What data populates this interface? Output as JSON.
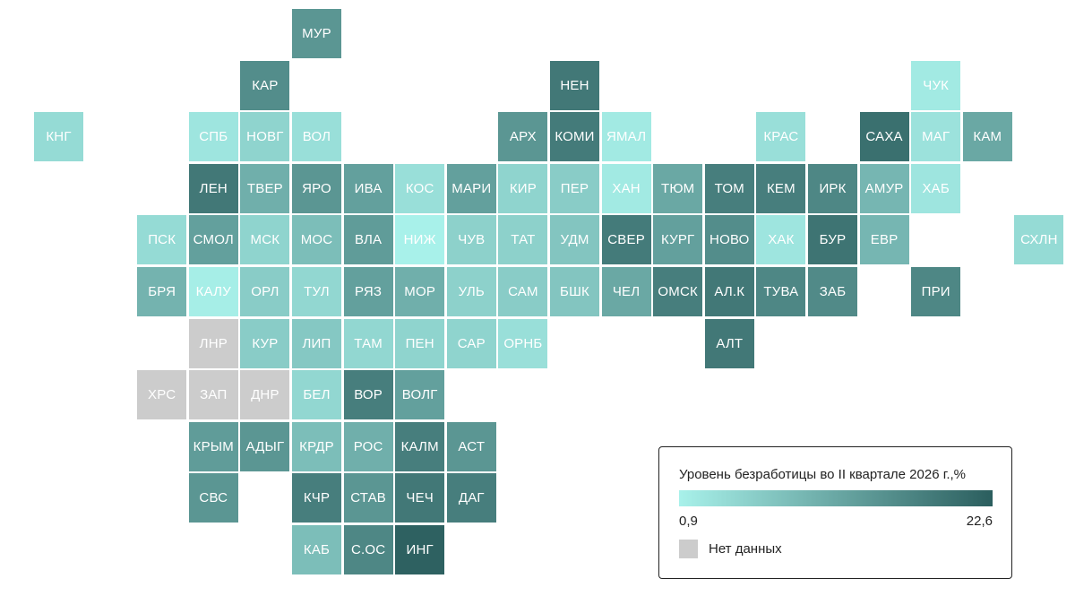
{
  "colors": {
    "low": "#a8f1ea",
    "high": "#2b5e5e",
    "no_data": "#cccccc"
  },
  "legend": {
    "title": "Уровень безработицы во II квартале 2026 г.,%",
    "min_label": "0,9",
    "max_label": "22,6",
    "no_data_label": "Нет данных"
  },
  "regions": [
    {
      "label": "МУР",
      "value": 0.62
    },
    {
      "label": "КАР",
      "value": 0.68
    },
    {
      "label": "НЕН",
      "value": 0.82
    },
    {
      "label": "ЧУК",
      "value": 0.05
    },
    {
      "label": "КНГ",
      "value": 0.15
    },
    {
      "label": "СПБ",
      "value": 0.08
    },
    {
      "label": "НОВГ",
      "value": 0.2
    },
    {
      "label": "ВОЛ",
      "value": 0.12
    },
    {
      "label": "АРХ",
      "value": 0.62
    },
    {
      "label": "КОМИ",
      "value": 0.8
    },
    {
      "label": "ЯМАЛ",
      "value": 0.05
    },
    {
      "label": "КРАС",
      "value": 0.12
    },
    {
      "label": "САХА",
      "value": 0.88
    },
    {
      "label": "МАГ",
      "value": 0.1
    },
    {
      "label": "КАМ",
      "value": 0.5
    },
    {
      "label": "ЛЕН",
      "value": 0.82
    },
    {
      "label": "ТВЕР",
      "value": 0.45
    },
    {
      "label": "ЯРО",
      "value": 0.62
    },
    {
      "label": "ИВА",
      "value": 0.55
    },
    {
      "label": "КОС",
      "value": 0.12
    },
    {
      "label": "МАРИ",
      "value": 0.55
    },
    {
      "label": "КИР",
      "value": 0.2
    },
    {
      "label": "ПЕР",
      "value": 0.25
    },
    {
      "label": "ХАН",
      "value": 0.05
    },
    {
      "label": "ТЮМ",
      "value": 0.5
    },
    {
      "label": "ТОМ",
      "value": 0.78
    },
    {
      "label": "КЕМ",
      "value": 0.78
    },
    {
      "label": "ИРК",
      "value": 0.72
    },
    {
      "label": "АМУР",
      "value": 0.4
    },
    {
      "label": "ХАБ",
      "value": 0.08
    },
    {
      "label": "ПСК",
      "value": 0.15
    },
    {
      "label": "СМОЛ",
      "value": 0.55
    },
    {
      "label": "МСК",
      "value": 0.2
    },
    {
      "label": "МОС",
      "value": 0.35
    },
    {
      "label": "ВЛА",
      "value": 0.58
    },
    {
      "label": "НИЖ",
      "value": 0.0
    },
    {
      "label": "ЧУВ",
      "value": 0.22
    },
    {
      "label": "ТАТ",
      "value": 0.22
    },
    {
      "label": "УДМ",
      "value": 0.3
    },
    {
      "label": "СВЕР",
      "value": 0.8
    },
    {
      "label": "КУРГ",
      "value": 0.55
    },
    {
      "label": "НОВО",
      "value": 0.68
    },
    {
      "label": "ХАК",
      "value": 0.08
    },
    {
      "label": "БУР",
      "value": 0.85
    },
    {
      "label": "ЕВР",
      "value": 0.4
    },
    {
      "label": "СХЛН",
      "value": 0.15
    },
    {
      "label": "БРЯ",
      "value": 0.42
    },
    {
      "label": "КАЛУ",
      "value": 0.02
    },
    {
      "label": "ОРЛ",
      "value": 0.25
    },
    {
      "label": "ТУЛ",
      "value": 0.18
    },
    {
      "label": "РЯЗ",
      "value": 0.55
    },
    {
      "label": "МОР",
      "value": 0.45
    },
    {
      "label": "УЛЬ",
      "value": 0.22
    },
    {
      "label": "САМ",
      "value": 0.25
    },
    {
      "label": "БШК",
      "value": 0.3
    },
    {
      "label": "ЧЕЛ",
      "value": 0.5
    },
    {
      "label": "ОМСК",
      "value": 0.78
    },
    {
      "label": "АЛ.К",
      "value": 0.82
    },
    {
      "label": "ТУВА",
      "value": 0.72
    },
    {
      "label": "ЗАБ",
      "value": 0.7
    },
    {
      "label": "ПРИ",
      "value": 0.72
    },
    {
      "label": "ЛНР",
      "value": null
    },
    {
      "label": "КУР",
      "value": 0.25
    },
    {
      "label": "ЛИП",
      "value": 0.28
    },
    {
      "label": "ТАМ",
      "value": 0.18
    },
    {
      "label": "ПЕН",
      "value": 0.2
    },
    {
      "label": "САР",
      "value": 0.2
    },
    {
      "label": "ОРНБ",
      "value": 0.12
    },
    {
      "label": "АЛТ",
      "value": 0.82
    },
    {
      "label": "ХРС",
      "value": null
    },
    {
      "label": "ЗАП",
      "value": null
    },
    {
      "label": "ДНР",
      "value": null
    },
    {
      "label": "БЕЛ",
      "value": 0.18
    },
    {
      "label": "ВОР",
      "value": 0.78
    },
    {
      "label": "ВОЛГ",
      "value": 0.55
    },
    {
      "label": "КРЫМ",
      "value": 0.58
    },
    {
      "label": "АДЫГ",
      "value": 0.62
    },
    {
      "label": "КРДР",
      "value": 0.35
    },
    {
      "label": "РОС",
      "value": 0.45
    },
    {
      "label": "КАЛМ",
      "value": 0.78
    },
    {
      "label": "АСТ",
      "value": 0.62
    },
    {
      "label": "СВС",
      "value": 0.62
    },
    {
      "label": "КЧР",
      "value": 0.78
    },
    {
      "label": "СТАВ",
      "value": 0.62
    },
    {
      "label": "ЧЕЧ",
      "value": 0.82
    },
    {
      "label": "ДАГ",
      "value": 0.78
    },
    {
      "label": "КАБ",
      "value": 0.35
    },
    {
      "label": "С.ОС",
      "value": 0.72
    },
    {
      "label": "ИНГ",
      "value": 0.98
    }
  ]
}
